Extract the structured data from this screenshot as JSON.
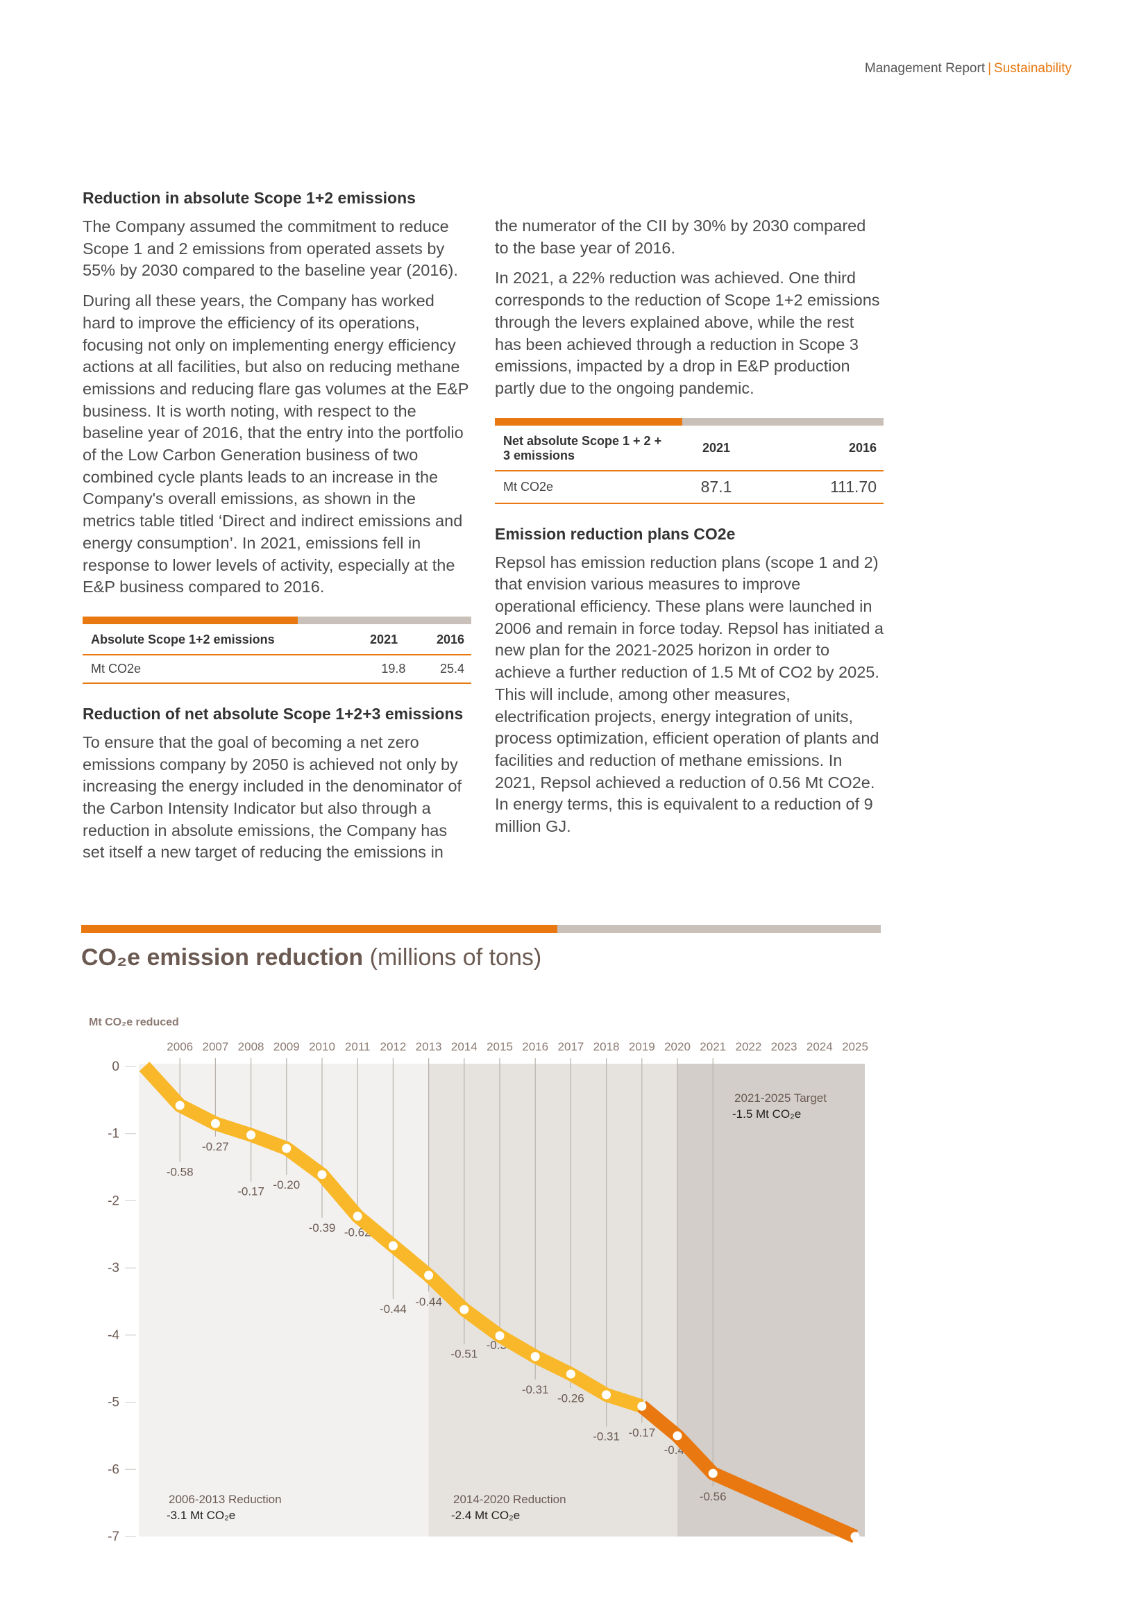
{
  "header": {
    "report": "Management Report",
    "separator": "|",
    "section": "Sustainability"
  },
  "left": {
    "heading1": "Reduction in absolute Scope 1+2 emissions",
    "p1": "The Company assumed the commitment to reduce Scope 1 and 2 emissions from operated assets by 55% by 2030 compared to the baseline year (2016).",
    "p2": "During all these years, the Company has worked hard to improve the efficiency of its operations, focusing not only on implementing energy efficiency actions at all facilities, but also on reducing methane emissions and reducing flare gas volumes at the E&P business. It is worth noting, with respect to the baseline year of 2016, that the entry into the portfolio of the Low Carbon Generation business of two combined cycle plants leads to an increase in the Company's overall emissions, as shown in the metrics table titled ‘Direct and indirect emissions and energy consumption’. In 2021, emissions fell in response to lower levels of activity, especially at the E&P business compared to 2016.",
    "table1": {
      "head": "Absolute Scope 1+2 emissions",
      "y1": "2021",
      "y2": "2016",
      "unit": "Mt CO2e",
      "v1": "19.8",
      "v2": "25.4"
    },
    "heading2": "Reduction of net absolute Scope 1+2+3 emissions",
    "p3": "To ensure that the goal of becoming a net zero emissions company by 2050 is achieved not only by increasing the energy included in the denominator of the Carbon Intensity Indicator but also through a reduction in absolute emissions, the Company has set itself a new target of reducing the emissions in"
  },
  "right": {
    "p1": "the numerator of the CII by 30% by 2030 compared to the base year of 2016.",
    "p2": "In 2021, a 22% reduction was achieved. One third corresponds to the reduction of Scope 1+2 emissions through the levers explained above, while the rest has been achieved through a reduction in Scope 3 emissions, impacted by a drop in E&P production partly due to the ongoing pandemic.",
    "table2": {
      "head": "Net absolute Scope 1 + 2 + 3 emissions",
      "y1": "2021",
      "y2": "2016",
      "unit": "Mt CO2e",
      "v1": "87.1",
      "v2": "111.70"
    },
    "heading": "Emission reduction plans CO2e",
    "p3": "Repsol has emission reduction plans (scope 1 and 2) that envision various measures to improve operational efficiency. These plans were launched in 2006 and remain in force today. Repsol has initiated a new plan for the 2021-2025 horizon in order to achieve a further reduction of 1.5 Mt of CO2 by 2025. This will include, among other measures, electrification projects, energy integration of units, process optimization, efficient operation of plants and facilities and reduction of methane emissions. In 2021, Repsol achieved a reduction of 0.56 Mt CO2e. In energy terms, this is equivalent to a reduction of 9 million GJ."
  },
  "chart_section": {
    "title_bold": "CO₂e emission reduction",
    "title_rest": "(millions of tons)"
  },
  "chart_data": {
    "type": "line",
    "ylabel": "Mt CO₂e reduced",
    "years": [
      "2006",
      "2007",
      "2008",
      "2009",
      "2010",
      "2011",
      "2012",
      "2013",
      "2014",
      "2015",
      "2016",
      "2017",
      "2018",
      "2019",
      "2020",
      "2021",
      "2022",
      "2023",
      "2024",
      "2025"
    ],
    "y_ticks": [
      "0",
      "-1",
      "-2",
      "-3",
      "-4",
      "-5",
      "-6",
      "-7"
    ],
    "ylim": [
      -7,
      0
    ],
    "points": [
      {
        "x": 2005,
        "y": 0
      },
      {
        "x": 2006,
        "y": -0.58
      },
      {
        "x": 2007,
        "y": -0.85
      },
      {
        "x": 2008,
        "y": -1.02
      },
      {
        "x": 2009,
        "y": -1.22
      },
      {
        "x": 2010,
        "y": -1.61
      },
      {
        "x": 2011,
        "y": -2.23
      },
      {
        "x": 2012,
        "y": -2.67
      },
      {
        "x": 2013,
        "y": -3.11
      },
      {
        "x": 2014,
        "y": -3.62
      },
      {
        "x": 2015,
        "y": -4.01
      },
      {
        "x": 2016,
        "y": -4.32
      },
      {
        "x": 2017,
        "y": -4.58
      },
      {
        "x": 2018,
        "y": -4.89
      },
      {
        "x": 2019,
        "y": -5.06
      },
      {
        "x": 2020,
        "y": -5.5
      },
      {
        "x": 2021,
        "y": -6.06
      },
      {
        "x": 2025,
        "y": -7.0
      }
    ],
    "value_labels": [
      {
        "year": 2006,
        "text": "-0.58"
      },
      {
        "year": 2007,
        "text": "-0.27"
      },
      {
        "year": 2008,
        "text": "-0.17"
      },
      {
        "year": 2009,
        "text": "-0.20"
      },
      {
        "year": 2010,
        "text": "-0.39"
      },
      {
        "year": 2011,
        "text": "-0.62"
      },
      {
        "year": 2012,
        "text": "-0.44"
      },
      {
        "year": 2013,
        "text": "-0.44"
      },
      {
        "year": 2014,
        "text": "-0.51"
      },
      {
        "year": 2015,
        "text": "-0.39"
      },
      {
        "year": 2016,
        "text": "-0.31"
      },
      {
        "year": 2017,
        "text": "-0.26"
      },
      {
        "year": 2018,
        "text": "-0.31"
      },
      {
        "year": 2019,
        "text": "-0.17"
      },
      {
        "year": 2020,
        "text": "-0.44"
      },
      {
        "year": 2021,
        "text": "-0.56"
      }
    ],
    "periods": [
      {
        "label": "2006-2013 Reduction",
        "value": "-3.1 Mt CO₂e"
      },
      {
        "label": "2014-2020 Reduction",
        "value": "-2.4 Mt CO₂e"
      },
      {
        "label": "2021-2025 Target",
        "value": "-1.5 Mt CO₂e"
      }
    ],
    "colors": {
      "line_past": "#f8b82a",
      "line_recent": "#e8780f",
      "bg1": "#f2f1ef",
      "bg2": "#e6e3df",
      "bg3": "#d3ceca"
    }
  }
}
